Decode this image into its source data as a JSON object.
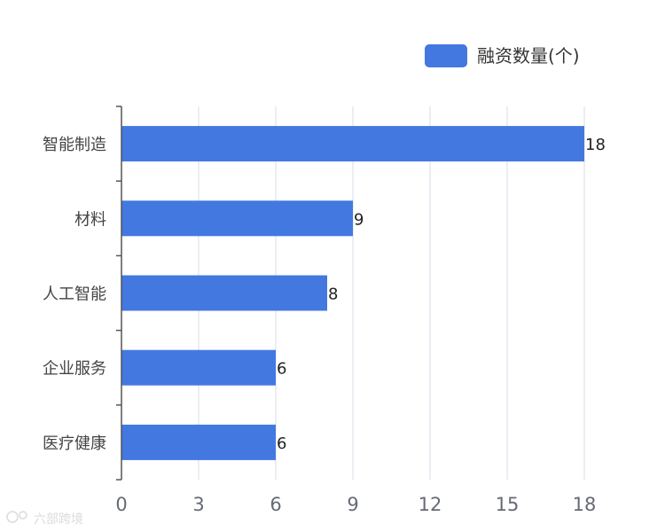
{
  "chart_data": {
    "type": "bar",
    "orientation": "horizontal",
    "categories": [
      "智能制造",
      "材料",
      "人工智能",
      "企业服务",
      "医疗健康"
    ],
    "series": [
      {
        "name": "融资数量(个)",
        "values": [
          18,
          9,
          8,
          6,
          6
        ]
      }
    ],
    "x_ticks": [
      0,
      3,
      6,
      9,
      12,
      15,
      18
    ],
    "xlim": [
      0,
      18
    ],
    "grid": "vertical",
    "legend": "top-right",
    "data_labels": true,
    "colors": {
      "bar": "#4378e0",
      "grid": "#d6dee8",
      "axis": "#555555",
      "tick_text": "#666a73",
      "label_text": "#222222"
    }
  },
  "watermark": "六部跨境"
}
